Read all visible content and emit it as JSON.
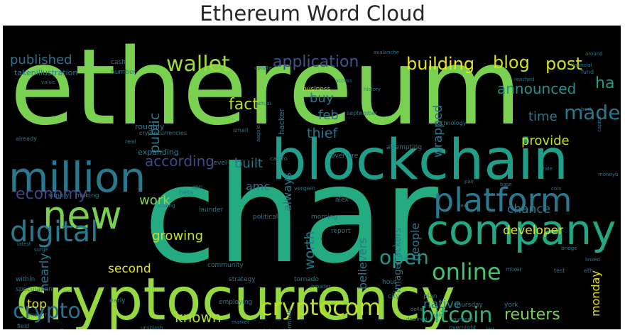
{
  "chart_data": {
    "type": "wordcloud",
    "title": "Ethereum Word Cloud",
    "background": "#000000",
    "colormap": "viridis",
    "words": [
      {
        "text": "ethereum",
        "weight": 100,
        "color": "#7ad151"
      },
      {
        "text": "char",
        "weight": 98,
        "color": "#25ab82"
      },
      {
        "text": "cryptocurrency",
        "weight": 72,
        "color": "#95d840"
      },
      {
        "text": "blockchain",
        "weight": 62,
        "color": "#1f9e89"
      },
      {
        "text": "million",
        "weight": 48,
        "color": "#2a788e"
      },
      {
        "text": "company",
        "weight": 48,
        "color": "#22a884"
      },
      {
        "text": "new",
        "weight": 46,
        "color": "#7ad151"
      },
      {
        "text": "platform",
        "weight": 40,
        "color": "#2a788e"
      },
      {
        "text": "digital",
        "weight": 36,
        "color": "#2a788e"
      },
      {
        "text": "online",
        "weight": 28,
        "color": "#4ac16d"
      },
      {
        "text": "cryptocom",
        "weight": 26,
        "color": "#bddf26"
      },
      {
        "text": "wallet",
        "weight": 26,
        "color": "#a0da39"
      },
      {
        "text": "bitcoin",
        "weight": 26,
        "color": "#2eb37c"
      },
      {
        "text": "crypto",
        "weight": 26,
        "color": "#2c728e"
      },
      {
        "text": "open",
        "weight": 24,
        "color": "#1f988b"
      },
      {
        "text": "economy",
        "weight": 22,
        "color": "#414487"
      },
      {
        "text": "made",
        "weight": 22,
        "color": "#2a788e"
      },
      {
        "text": "building",
        "weight": 22,
        "color": "#e5e419"
      },
      {
        "text": "blog",
        "weight": 22,
        "color": "#d0e11c"
      },
      {
        "text": "post",
        "weight": 22,
        "color": "#d0e11c"
      },
      {
        "text": "application",
        "weight": 20,
        "color": "#3b528b"
      },
      {
        "text": "reuters",
        "weight": 20,
        "color": "#7ad151"
      },
      {
        "text": "ha",
        "weight": 18,
        "color": "#1f9e89"
      },
      {
        "text": "fact",
        "weight": 18,
        "color": "#b5de2b"
      },
      {
        "text": "announced",
        "weight": 16,
        "color": "#21918c"
      },
      {
        "text": "according",
        "weight": 16,
        "color": "#3e4989"
      },
      {
        "text": "known",
        "weight": 16,
        "color": "#b5de2b"
      },
      {
        "text": "thief",
        "weight": 15,
        "color": "#2c728e"
      },
      {
        "text": "public",
        "weight": 15,
        "color": "#2a788e"
      },
      {
        "text": "worth",
        "weight": 15,
        "color": "#2a788e"
      },
      {
        "text": "published",
        "weight": 15,
        "color": "#2c728e"
      },
      {
        "text": "buy",
        "weight": 14,
        "color": "#2a788e"
      },
      {
        "text": "feb",
        "weight": 14,
        "color": "#2a788e"
      },
      {
        "text": "time",
        "weight": 14,
        "color": "#2a788e"
      },
      {
        "text": "provide",
        "weight": 14,
        "color": "#c8e020"
      },
      {
        "text": "built",
        "weight": 14,
        "color": "#2a788e"
      },
      {
        "text": "growing",
        "weight": 14,
        "color": "#c8e020"
      },
      {
        "text": "work",
        "weight": 14,
        "color": "#86d549"
      },
      {
        "text": "chance",
        "weight": 13,
        "color": "#2a788e"
      },
      {
        "text": "developer",
        "weight": 13,
        "color": "#e5e419"
      },
      {
        "text": "wrapped",
        "weight": 13,
        "color": "#2a788e"
      },
      {
        "text": "nearly",
        "weight": 13,
        "color": "#2a788e"
      },
      {
        "text": "second",
        "weight": 13,
        "color": "#e5e419"
      },
      {
        "text": "top",
        "weight": 13,
        "color": "#e5e419"
      },
      {
        "text": "native",
        "weight": 13,
        "color": "#2a788e"
      },
      {
        "text": "people",
        "weight": 12,
        "color": "#2a788e"
      },
      {
        "text": "believers",
        "weight": 12,
        "color": "#2a788e"
      },
      {
        "text": "monday",
        "weight": 12,
        "color": "#e5e419"
      },
      {
        "text": "always",
        "weight": 12,
        "color": "#2a788e"
      },
      {
        "text": "amc",
        "weight": 12,
        "color": "#2a788e"
      },
      {
        "text": "imagehackers",
        "weight": 10,
        "color": "#2a788e"
      },
      {
        "text": "milliongetty",
        "weight": 10,
        "color": "#2a788e"
      },
      {
        "text": "takenillustration",
        "weight": 9,
        "color": "#2a788e"
      },
      {
        "text": "hacker",
        "weight": 9,
        "color": "#2a788e"
      },
      {
        "text": "roughly",
        "weight": 9,
        "color": "#2a788e"
      },
      {
        "text": "expanding",
        "weight": 9,
        "color": "#2a788e"
      },
      {
        "text": "cash",
        "weight": 8,
        "color": "#2a788e"
      },
      {
        "text": "number",
        "weight": 8,
        "color": "#2a788e"
      },
      {
        "text": "business",
        "weight": 8,
        "color": "#cfe11c"
      },
      {
        "text": "attempting",
        "weight": 8,
        "color": "#2a788e"
      },
      {
        "text": "overture",
        "weight": 8,
        "color": "#2a788e"
      },
      {
        "text": "political",
        "weight": 8,
        "color": "#2a788e"
      },
      {
        "text": "morning",
        "weight": 8,
        "color": "#2a788e"
      },
      {
        "text": "alex",
        "weight": 8,
        "color": "#2a788e"
      },
      {
        "text": "report",
        "weight": 8,
        "color": "#2a788e"
      },
      {
        "text": "level",
        "weight": 8,
        "color": "#2a788e"
      },
      {
        "text": "beta",
        "weight": 8,
        "color": "#2a788e"
      },
      {
        "text": "launder",
        "weight": 8,
        "color": "#2a788e"
      },
      {
        "text": "community",
        "weight": 8,
        "color": "#2a788e"
      },
      {
        "text": "strategy",
        "weight": 8,
        "color": "#2a788e"
      },
      {
        "text": "tornado",
        "weight": 8,
        "color": "#2a788e"
      },
      {
        "text": "hour",
        "weight": 8,
        "color": "#2a788e"
      },
      {
        "text": "city",
        "weight": 8,
        "color": "#2a788e"
      },
      {
        "text": "plan",
        "weight": 8,
        "color": "#2a788e"
      },
      {
        "text": "employing",
        "weight": 8,
        "color": "#2a788e"
      },
      {
        "text": "early",
        "weight": 8,
        "color": "#2a788e"
      },
      {
        "text": "robinhood",
        "weight": 8,
        "color": "#2a788e"
      },
      {
        "text": "fintech",
        "weight": 8,
        "color": "#2a788e"
      },
      {
        "text": "socalled",
        "weight": 8,
        "color": "#2a788e"
      },
      {
        "text": "thursday",
        "weight": 8,
        "color": "#2a788e"
      },
      {
        "text": "york",
        "weight": 8,
        "color": "#2a788e"
      },
      {
        "text": "within",
        "weight": 8,
        "color": "#2a788e"
      },
      {
        "text": "simply",
        "weight": 8,
        "color": "#2a788e"
      },
      {
        "text": "making",
        "weight": 8,
        "color": "#2a788e"
      },
      {
        "text": "speculation",
        "weight": 8,
        "color": "#2a788e"
      },
      {
        "text": "field",
        "weight": 7,
        "color": "#2a788e"
      },
      {
        "text": "mixer",
        "weight": 7,
        "color": "#2a788e"
      },
      {
        "text": "test",
        "weight": 7,
        "color": "#2a788e"
      },
      {
        "text": "eth",
        "weight": 7,
        "color": "#2a788e"
      },
      {
        "text": "app",
        "weight": 7,
        "color": "#2a788e"
      },
      {
        "text": "castro",
        "weight": 7,
        "color": "#2a788e"
      },
      {
        "text": "september",
        "weight": 7,
        "color": "#2a788e"
      },
      {
        "text": "wormhole",
        "weight": 7,
        "color": "#2a788e"
      },
      {
        "text": "vergein",
        "weight": 7,
        "color": "#2a788e"
      },
      {
        "text": "real",
        "weight": 7,
        "color": "#2a788e"
      },
      {
        "text": "small",
        "weight": 7,
        "color": "#2a788e"
      },
      {
        "text": "cryptocurrencies",
        "weight": 7,
        "color": "#2a788e"
      },
      {
        "text": "fund",
        "weight": 7,
        "color": "#2a788e"
      },
      {
        "text": "technology",
        "weight": 7,
        "color": "#2a788e"
      },
      {
        "text": "overnight",
        "weight": 7,
        "color": "#2a788e"
      },
      {
        "text": "already",
        "weight": 7,
        "color": "#2a788e"
      },
      {
        "text": "mayor",
        "weight": 7,
        "color": "#2a788e"
      },
      {
        "text": "around",
        "weight": 6,
        "color": "#2a788e"
      },
      {
        "text": "financial",
        "weight": 6,
        "color": "#2a788e"
      },
      {
        "text": "capital",
        "weight": 6,
        "color": "#2a788e"
      },
      {
        "text": "moneyb",
        "weight": 6,
        "color": "#2a788e"
      },
      {
        "text": "best",
        "weight": 6,
        "color": "#2a788e"
      },
      {
        "text": "surge",
        "weight": 6,
        "color": "#2a788e"
      },
      {
        "text": "latest",
        "weight": 6,
        "color": "#2a788e"
      },
      {
        "text": "avalanche",
        "weight": 6,
        "color": "#2a788e"
      },
      {
        "text": "dollar",
        "weight": 6,
        "color": "#2a788e"
      },
      {
        "text": "purpose",
        "weight": 6,
        "color": "#2a788e"
      },
      {
        "text": "declined",
        "weight": 6,
        "color": "#2a788e"
      },
      {
        "text": "unsplash",
        "weight": 6,
        "color": "#2a788e"
      },
      {
        "text": "polygon",
        "weight": 6,
        "color": "#2a788e"
      },
      {
        "text": "market",
        "weight": 6,
        "color": "#2a788e"
      },
      {
        "text": "update",
        "weight": 6,
        "color": "#2a788e"
      },
      {
        "text": "access",
        "weight": 6,
        "color": "#2a788e"
      },
      {
        "text": "history",
        "weight": 6,
        "color": "#2a788e"
      },
      {
        "text": "value",
        "weight": 6,
        "color": "#2a788e"
      },
      {
        "text": "reached",
        "weight": 6,
        "color": "#2a788e"
      },
      {
        "text": "scaling",
        "weight": 6,
        "color": "#2a788e"
      },
      {
        "text": "aegold",
        "weight": 6,
        "color": "#2a788e"
      },
      {
        "text": "actual",
        "weight": 6,
        "color": "#2a788e"
      },
      {
        "text": "broader",
        "weight": 6,
        "color": "#2a788e"
      },
      {
        "text": "pair",
        "weight": 6,
        "color": "#2a788e"
      },
      {
        "text": "fee",
        "weight": 6,
        "color": "#2a788e"
      },
      {
        "text": "base",
        "weight": 6,
        "color": "#2a788e"
      },
      {
        "text": "deal",
        "weight": 6,
        "color": "#2a788e"
      },
      {
        "text": "sale",
        "weight": 6,
        "color": "#2a788e"
      },
      {
        "text": "lost",
        "weight": 6,
        "color": "#2a788e"
      },
      {
        "text": "rate",
        "weight": 6,
        "color": "#2a788e"
      },
      {
        "text": "bridge",
        "weight": 6,
        "color": "#2a788e"
      },
      {
        "text": "linked",
        "weight": 6,
        "color": "#2a788e"
      },
      {
        "text": "coin",
        "weight": 6,
        "color": "#2a788e"
      }
    ]
  }
}
